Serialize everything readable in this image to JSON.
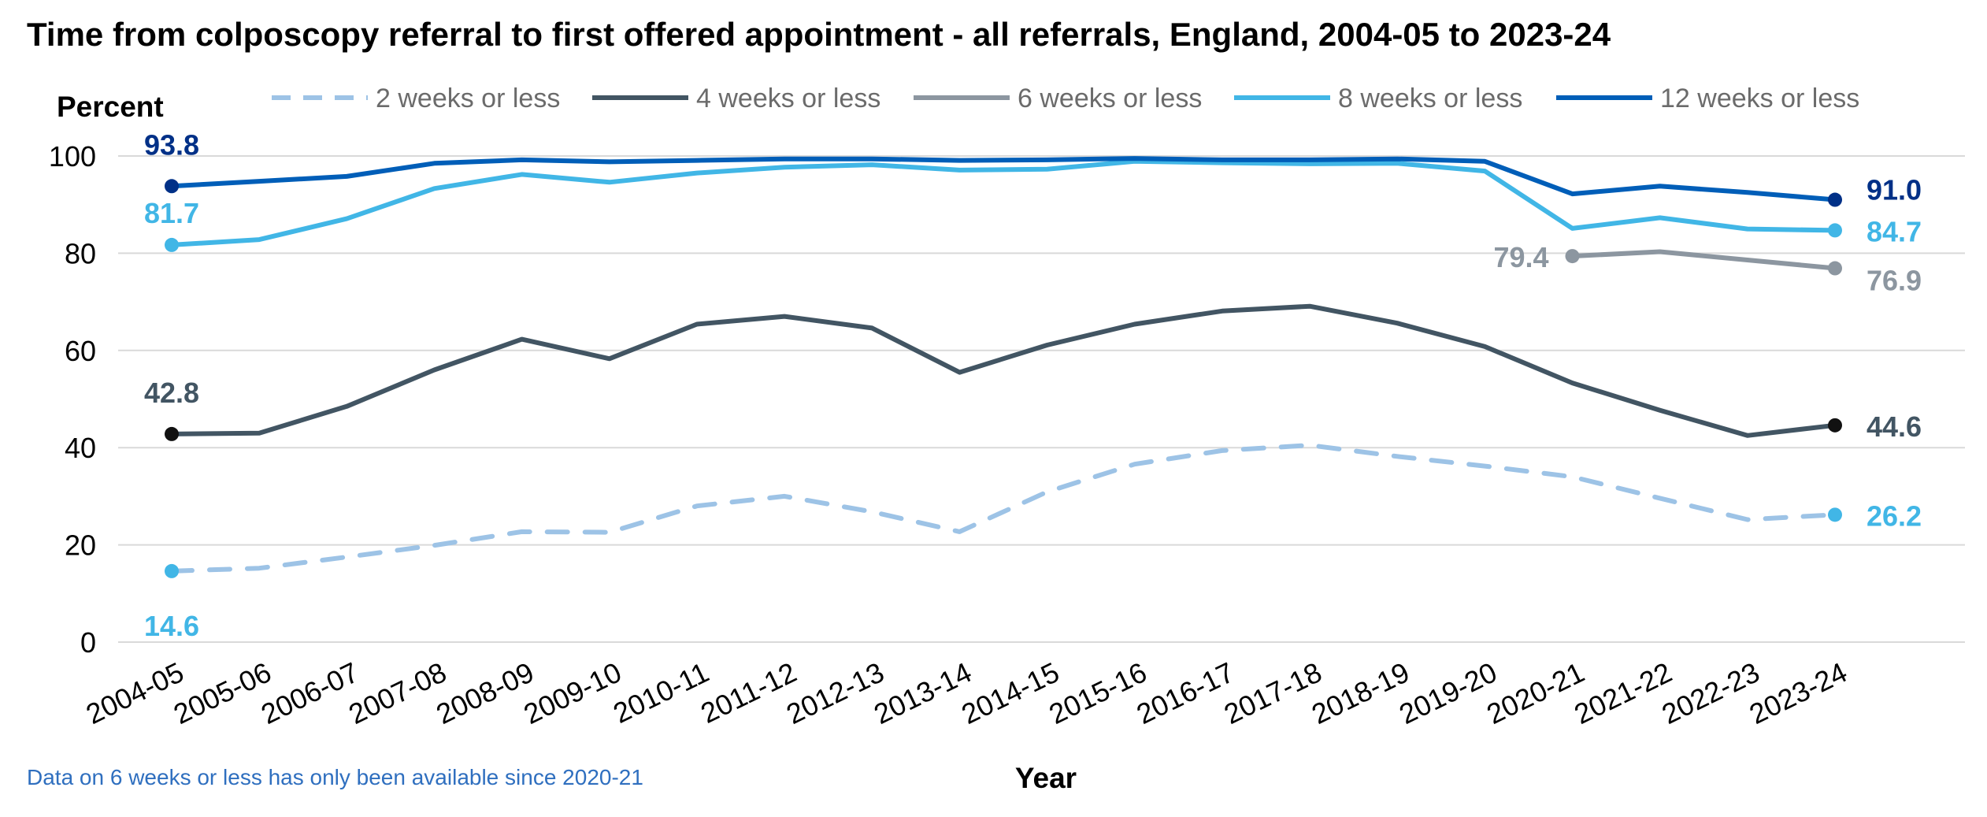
{
  "chart_data": {
    "type": "line",
    "title": "Time from colposcopy referral to first offered appointment - all referrals, England, 2004-05 to 2023-24",
    "ylabel": "Percent",
    "xlabel": "Year",
    "ylim": [
      0,
      100
    ],
    "yticks": [
      0,
      20,
      40,
      60,
      80,
      100
    ],
    "grid": true,
    "legend_position": "top",
    "categories": [
      "2004-05",
      "2005-06",
      "2006-07",
      "2007-08",
      "2008-09",
      "2009-10",
      "2010-11",
      "2011-12",
      "2012-13",
      "2013-14",
      "2014-15",
      "2015-16",
      "2016-17",
      "2017-18",
      "2018-19",
      "2019-20",
      "2020-21",
      "2021-22",
      "2022-23",
      "2023-24"
    ],
    "series": [
      {
        "name": "2 weeks or less",
        "color": "#9dc3e6",
        "dashed": true,
        "values": [
          14.6,
          15.2,
          17.5,
          19.9,
          22.7,
          22.6,
          28.0,
          30.0,
          26.8,
          22.7,
          30.9,
          36.6,
          39.4,
          40.5,
          38.2,
          36.2,
          34.0,
          29.6,
          25.2,
          26.2
        ],
        "marker_color": "#41b6e6",
        "start_label": "14.6",
        "end_label": "26.2",
        "label_color": "#41b6e6"
      },
      {
        "name": "4 weeks or less",
        "color": "#425563",
        "dashed": false,
        "values": [
          42.8,
          43.0,
          48.5,
          56.0,
          62.3,
          58.3,
          65.4,
          67.0,
          64.6,
          55.5,
          61.1,
          65.4,
          68.1,
          69.1,
          65.6,
          60.8,
          53.3,
          47.7,
          42.5,
          44.6
        ],
        "marker_color": "#111111",
        "start_label": "42.8",
        "end_label": "44.6",
        "label_color": "#425563"
      },
      {
        "name": "6 weeks or less",
        "color": "#8c96a0",
        "dashed": false,
        "values": [
          null,
          null,
          null,
          null,
          null,
          null,
          null,
          null,
          null,
          null,
          null,
          null,
          null,
          null,
          null,
          null,
          79.4,
          80.3,
          78.6,
          76.9
        ],
        "marker_color": "#8c96a0",
        "start_label": "79.4",
        "end_label": "76.9",
        "label_color": "#8c96a0"
      },
      {
        "name": "8 weeks or less",
        "color": "#41b6e6",
        "dashed": false,
        "values": [
          81.7,
          82.8,
          87.1,
          93.3,
          96.2,
          94.6,
          96.5,
          97.7,
          98.2,
          97.1,
          97.3,
          98.9,
          98.6,
          98.4,
          98.5,
          96.9,
          85.1,
          87.3,
          85.0,
          84.7
        ],
        "marker_color": "#41b6e6",
        "start_label": "81.7",
        "end_label": "84.7",
        "label_color": "#41b6e6"
      },
      {
        "name": "12 weeks or less",
        "color": "#005eb8",
        "dashed": false,
        "values": [
          93.8,
          94.8,
          95.8,
          98.5,
          99.2,
          98.8,
          99.1,
          99.4,
          99.4,
          99.1,
          99.2,
          99.5,
          99.2,
          99.2,
          99.4,
          98.9,
          92.2,
          93.8,
          92.5,
          91.0
        ],
        "marker_color": "#003087",
        "start_label": "93.8",
        "end_label": "91.0",
        "label_color": "#003087"
      }
    ],
    "note": "Data on 6 weeks or less has only been available since 2020-21"
  }
}
